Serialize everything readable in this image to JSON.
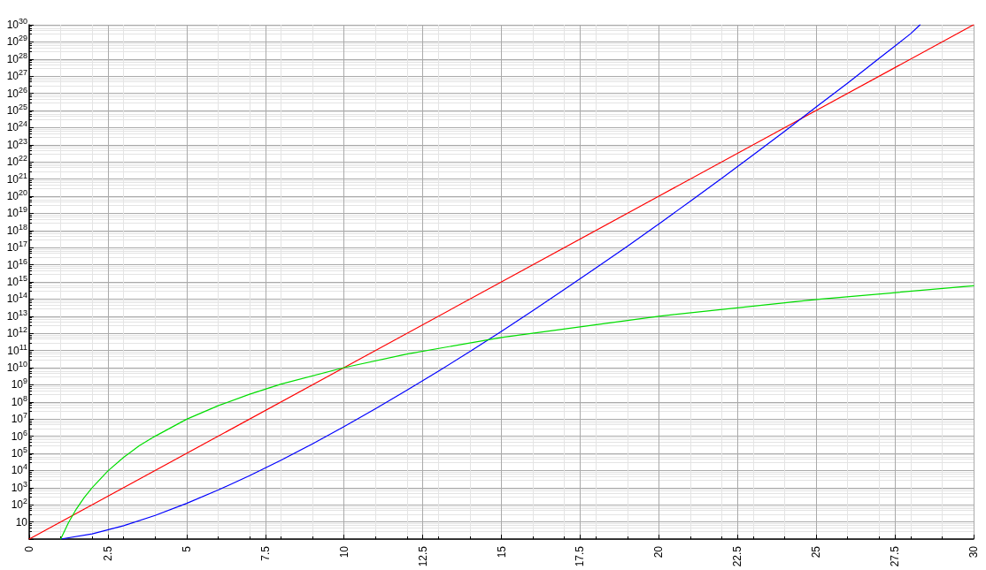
{
  "chart_data": {
    "type": "line",
    "log": "y",
    "grid": true,
    "marker": "none",
    "line_style": "solid",
    "xlim": [
      0,
      30
    ],
    "xticks": [
      0,
      2.5,
      5,
      7.5,
      10,
      12.5,
      15,
      17.5,
      20,
      22.5,
      25,
      27.5,
      30
    ],
    "ylim": [
      1,
      1e+30
    ],
    "yticks": [
      {
        "value": 10,
        "label": "10"
      },
      {
        "value": 100.0,
        "label": "10$^{2}$"
      },
      {
        "value": 1000.0,
        "label": "10$^{3}$"
      },
      {
        "value": 10000.0,
        "label": "10$^{4}$"
      },
      {
        "value": 100000.0,
        "label": "10$^{5}$"
      },
      {
        "value": 1000000.0,
        "label": "10$^{6}$"
      },
      {
        "value": 10000000.0,
        "label": "10$^{7}$"
      },
      {
        "value": 100000000.0,
        "label": "10$^{8}$"
      },
      {
        "value": 1000000000.0,
        "label": "10$^{9}$"
      },
      {
        "value": 10000000000.0,
        "label": "10$^{10}$"
      },
      {
        "value": 100000000000.0,
        "label": "10$^{11}$"
      },
      {
        "value": 1000000000000.0,
        "label": "10$^{12}$"
      },
      {
        "value": 10000000000000.0,
        "label": "10$^{13}$"
      },
      {
        "value": 100000000000000.0,
        "label": "10$^{14}$"
      },
      {
        "value": 1000000000000000.0,
        "label": "10$^{15}$"
      },
      {
        "value": 1e+16,
        "label": "10$^{16}$"
      },
      {
        "value": 1e+17,
        "label": "10$^{17}$"
      },
      {
        "value": 1e+18,
        "label": "10$^{18}$"
      },
      {
        "value": 1e+19,
        "label": "10$^{19}$"
      },
      {
        "value": 1e+20,
        "label": "10$^{20}$"
      },
      {
        "value": 1e+21,
        "label": "10$^{21}$"
      },
      {
        "value": 1e+22,
        "label": "10$^{22}$"
      },
      {
        "value": 1e+23,
        "label": "10$^{23}$"
      },
      {
        "value": 1e+24,
        "label": "10$^{24}$"
      },
      {
        "value": 1e+25,
        "label": "10$^{25}$"
      },
      {
        "value": 1e+26,
        "label": "10$^{26}$"
      },
      {
        "value": 1e+27,
        "label": "10$^{27}$"
      },
      {
        "value": 1e+28,
        "label": "10$^{28}$"
      },
      {
        "value": 1e+29,
        "label": "10$^{29}$"
      },
      {
        "value": 1e+30,
        "label": "10$^{30}$"
      }
    ],
    "series": [
      {
        "color": "#ff0000",
        "x": [
          0,
          5,
          10,
          15,
          20,
          25,
          30
        ],
        "values": [
          1,
          100000.0,
          10000000000.0,
          1000000000000000.0,
          1e+20,
          1e+25,
          1e+30
        ]
      },
      {
        "color": "#0000ff",
        "x": [
          1,
          2,
          3,
          4,
          5,
          6,
          7,
          8,
          9,
          10,
          11,
          12,
          13,
          14,
          15,
          16,
          17,
          18,
          19,
          20,
          21,
          22,
          23,
          24,
          25,
          26,
          27,
          28,
          28.3
        ],
        "values": [
          1,
          2,
          6,
          24,
          120,
          720,
          5000,
          40000,
          360000.0,
          3600000.0,
          40000000.0,
          480000000.0,
          6200000000.0,
          87000000000.0,
          1300000000000.0,
          21000000000000.0,
          360000000000000.0,
          6400000000000000.0,
          1.2e+17,
          2.4e+18,
          5.1e+19,
          1.1e+21,
          2.6e+22,
          6.2e+23,
          1.6e+25,
          4e+26,
          1.1e+28,
          3e+29,
          1e+30
        ]
      },
      {
        "color": "#00dd00",
        "x": [
          1,
          1.25,
          1.5,
          1.75,
          2,
          2.5,
          3,
          3.5,
          4,
          5,
          6,
          7,
          8,
          10,
          12,
          15,
          20,
          25,
          30
        ],
        "values": [
          1,
          9.3,
          58,
          270,
          1000,
          9500,
          59000,
          280000.0,
          1000000.0,
          9800000.0,
          60000000.0,
          280000000.0,
          1100000000.0,
          10000000000.0,
          62000000000.0,
          580000000000.0,
          10000000000000.0,
          95000000000000.0,
          590000000000000.0
        ]
      }
    ]
  }
}
